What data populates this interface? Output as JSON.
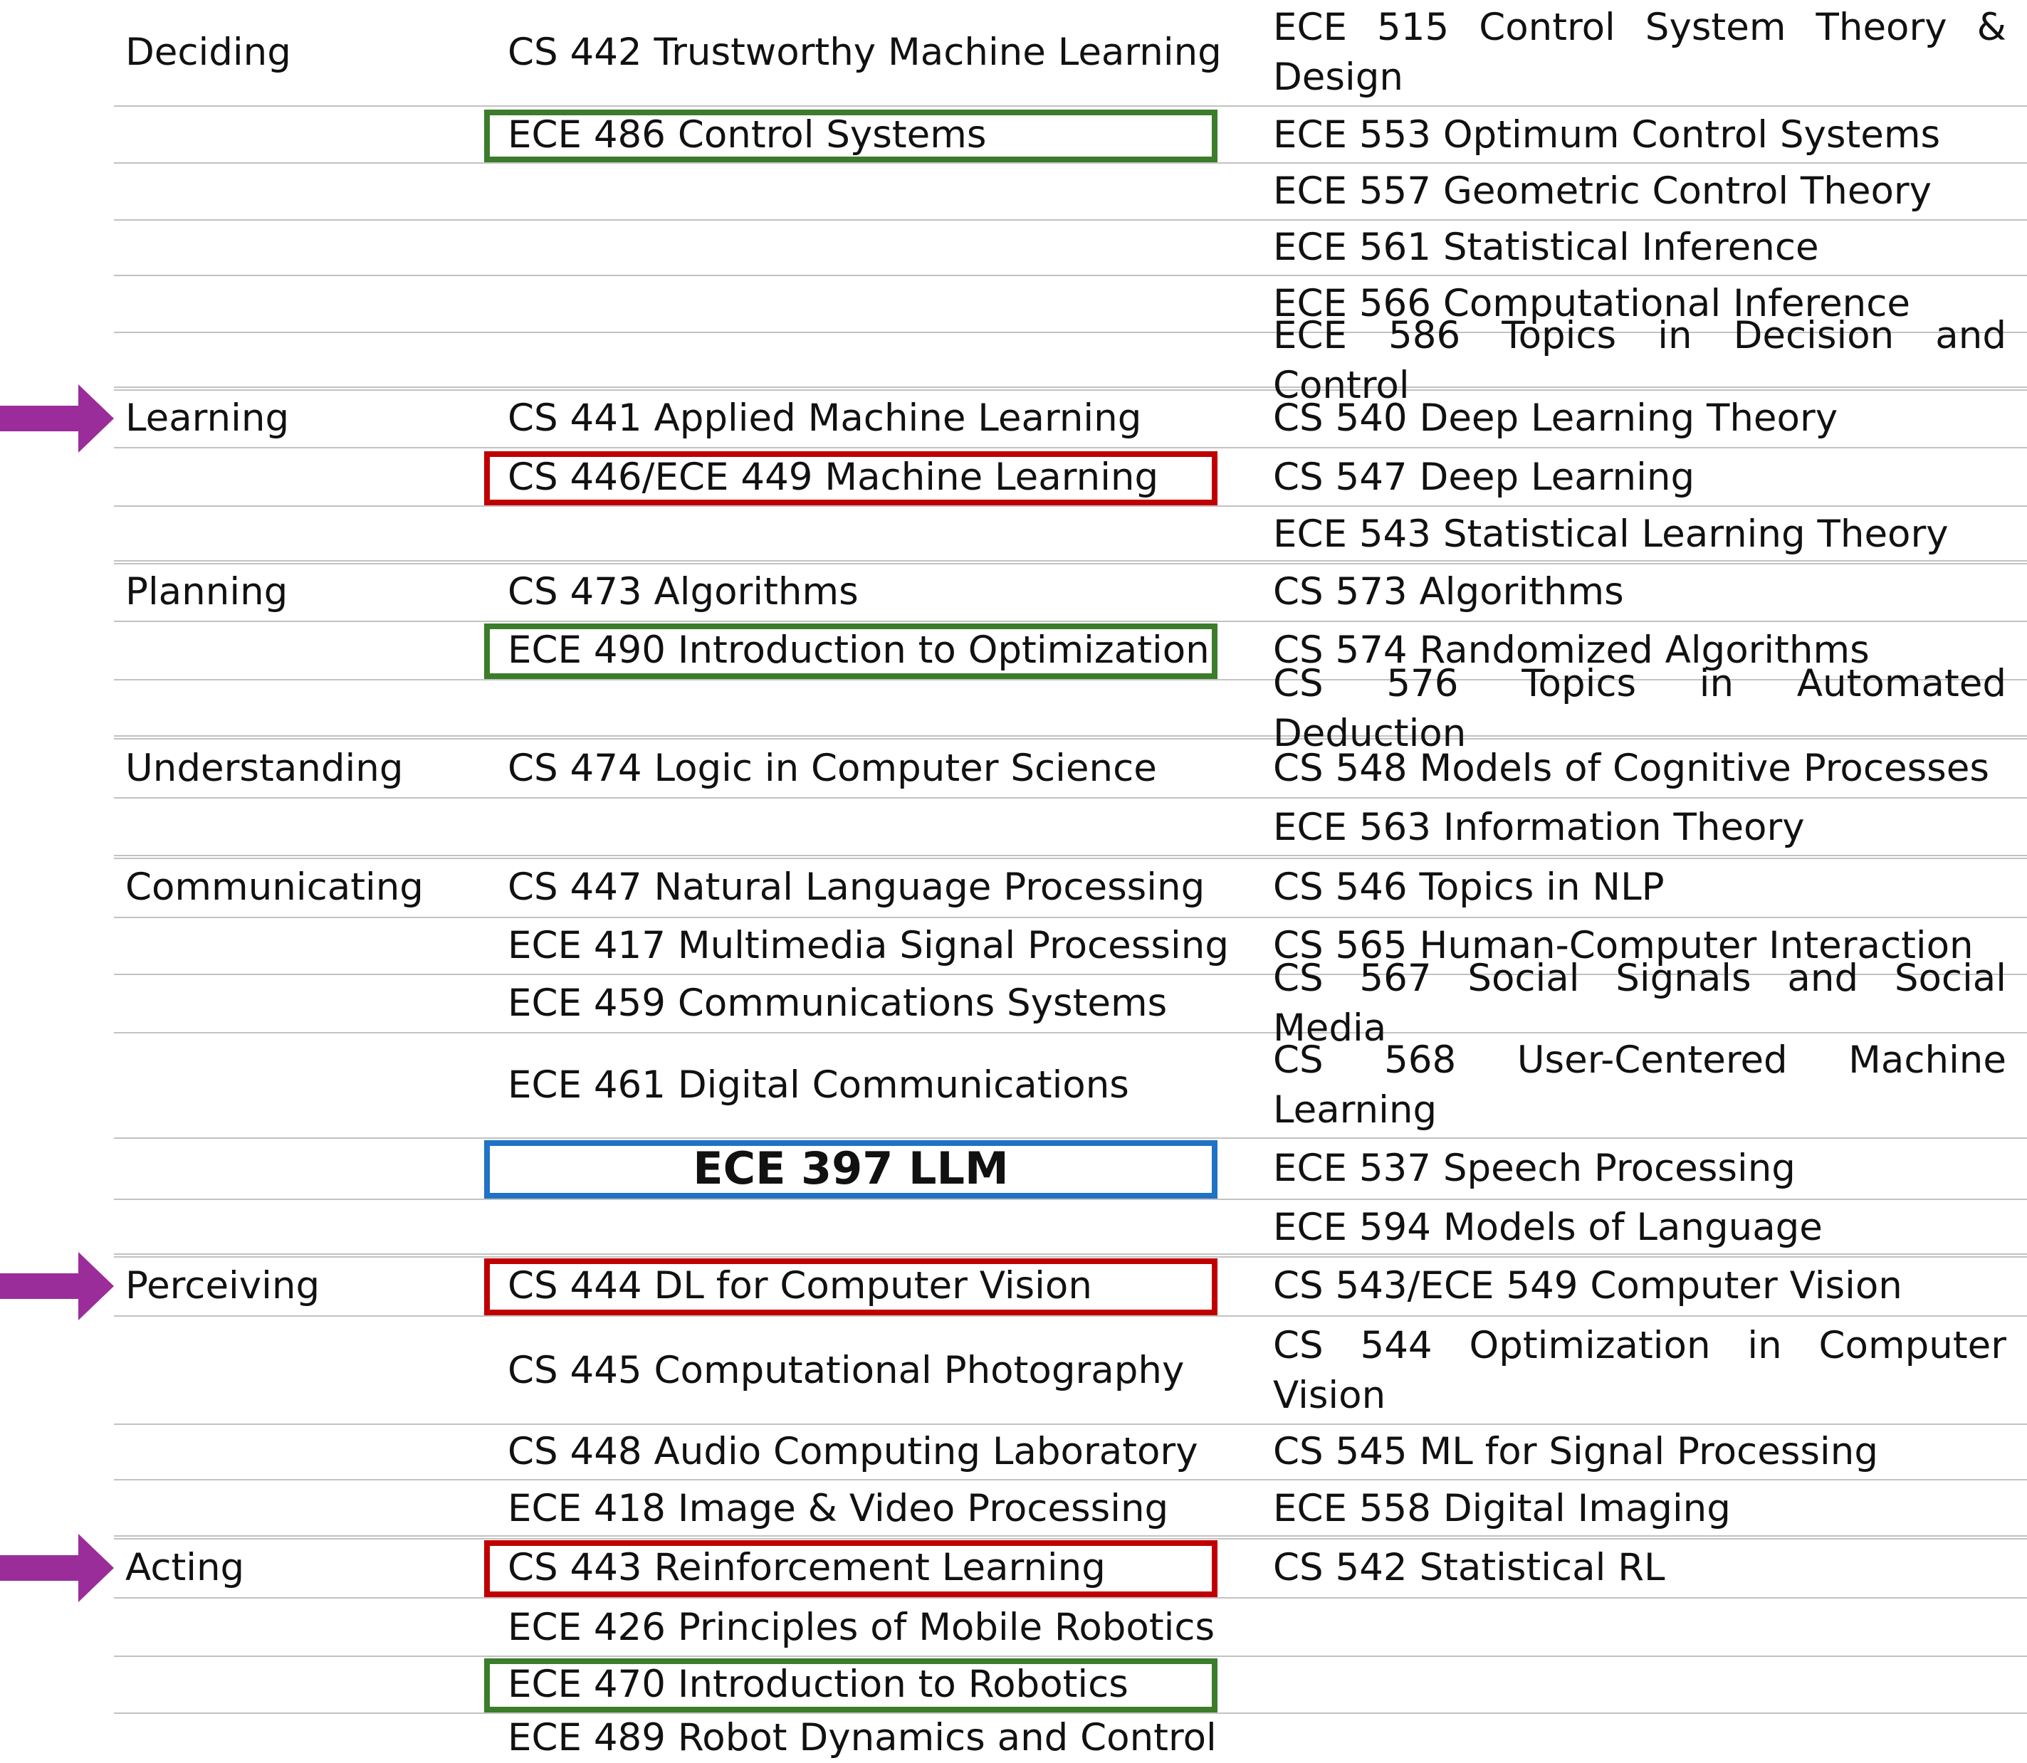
{
  "colors": {
    "green_box": "#3b7d2a",
    "red_box": "#c00000",
    "blue_box": "#1f72c4",
    "arrow": "#9b2d9b",
    "rule": "#c2c2c2"
  },
  "rows": [
    {
      "category": "Deciding",
      "undergrad": "CS 442 Trustworthy Machine Learning",
      "grad": "ECE 515 Control System Theory & Design"
    },
    {
      "category": "",
      "undergrad": "ECE 486 Control Systems",
      "grad": "ECE 553 Optimum Control Systems"
    },
    {
      "category": "",
      "undergrad": "",
      "grad": "ECE 557 Geometric Control Theory"
    },
    {
      "category": "",
      "undergrad": "",
      "grad": "ECE 561 Statistical Inference"
    },
    {
      "category": "",
      "undergrad": "",
      "grad": "ECE 566 Computational Inference"
    },
    {
      "category": "",
      "undergrad": "",
      "grad": "ECE 586 Topics in Decision and Control"
    },
    {
      "category": "Learning",
      "undergrad": "CS 441 Applied Machine Learning",
      "grad": "CS 540 Deep Learning Theory"
    },
    {
      "category": "",
      "undergrad": "CS 446/ECE 449 Machine Learning",
      "grad": "CS 547 Deep Learning"
    },
    {
      "category": "",
      "undergrad": "",
      "grad": "ECE 543 Statistical Learning Theory"
    },
    {
      "category": "Planning",
      "undergrad": "CS 473 Algorithms",
      "grad": "CS 573 Algorithms"
    },
    {
      "category": "",
      "undergrad": "ECE 490 Introduction to Optimization",
      "grad": "CS 574 Randomized Algorithms"
    },
    {
      "category": "",
      "undergrad": "",
      "grad": "CS 576 Topics in Automated Deduction"
    },
    {
      "category": "Understanding",
      "undergrad": "CS 474 Logic in Computer Science",
      "grad": "CS 548 Models of Cognitive Processes"
    },
    {
      "category": "",
      "undergrad": "",
      "grad": "ECE 563 Information Theory"
    },
    {
      "category": "Communicating",
      "undergrad": "CS 447 Natural Language Processing",
      "grad": "CS 546 Topics in NLP"
    },
    {
      "category": "",
      "undergrad": "ECE 417 Multimedia Signal Processing",
      "grad": "CS 565 Human-Computer Interaction"
    },
    {
      "category": "",
      "undergrad": "ECE 459 Communications Systems",
      "grad": "CS 567 Social Signals and Social Media"
    },
    {
      "category": "",
      "undergrad": "ECE 461 Digital Communications",
      "grad": "CS 568 User-Centered Machine Learning"
    },
    {
      "category": "",
      "undergrad": "ECE 397 LLM",
      "grad": "ECE 537 Speech Processing"
    },
    {
      "category": "",
      "undergrad": "",
      "grad": "ECE 594 Models of Language"
    },
    {
      "category": "Perceiving",
      "undergrad": "CS 444 DL for Computer Vision",
      "grad": "CS 543/ECE 549 Computer Vision"
    },
    {
      "category": "",
      "undergrad": "CS 445 Computational Photography",
      "grad": "CS 544 Optimization in Computer Vision"
    },
    {
      "category": "",
      "undergrad": "CS 448 Audio Computing Laboratory",
      "grad": "CS 545 ML for Signal Processing"
    },
    {
      "category": "",
      "undergrad": "ECE 418 Image & Video Processing",
      "grad": "ECE 558 Digital Imaging"
    },
    {
      "category": "Acting",
      "undergrad": "CS 443 Reinforcement Learning",
      "grad": "CS 542 Statistical RL"
    },
    {
      "category": "",
      "undergrad": "ECE 426 Principles of Mobile Robotics",
      "grad": ""
    },
    {
      "category": "",
      "undergrad": "ECE 470 Introduction to Robotics",
      "grad": ""
    },
    {
      "category": "",
      "undergrad": "ECE 489 Robot Dynamics and Control",
      "grad": ""
    }
  ],
  "highlights": {
    "green": [
      "ECE 486 Control Systems",
      "ECE 490 Introduction to Optimization",
      "ECE 470 Introduction to Robotics"
    ],
    "red": [
      "CS 446/ECE 449 Machine Learning",
      "CS 444 DL for Computer Vision",
      "CS 443 Reinforcement Learning"
    ],
    "blue": [
      "ECE 397 LLM"
    ]
  },
  "arrows": [
    "right-arrow-icon",
    "right-arrow-icon",
    "right-arrow-icon"
  ]
}
